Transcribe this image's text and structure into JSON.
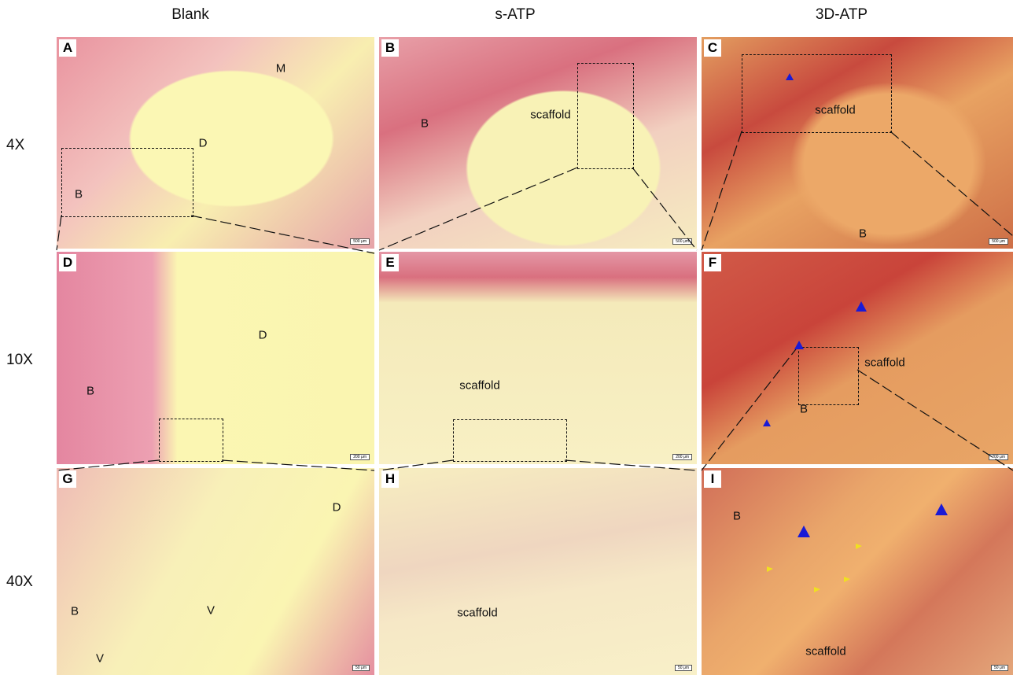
{
  "columns": [
    "Blank",
    "s-ATP",
    "3D-ATP"
  ],
  "rows": [
    "4X",
    "10X",
    "40X"
  ],
  "panels": [
    {
      "letter": "A",
      "labels": [
        "M",
        "D",
        "B"
      ],
      "scale_bar": "500 μm"
    },
    {
      "letter": "B",
      "labels": [
        "scaffold",
        "B"
      ],
      "scale_bar": "500 μm"
    },
    {
      "letter": "C",
      "labels": [
        "scaffold",
        "B"
      ],
      "scale_bar": "500 μm"
    },
    {
      "letter": "D",
      "labels": [
        "D",
        "B"
      ],
      "scale_bar": "200 μm"
    },
    {
      "letter": "E",
      "labels": [
        "scaffold"
      ],
      "scale_bar": "200 μm"
    },
    {
      "letter": "F",
      "labels": [
        "scaffold",
        "B"
      ],
      "scale_bar": "200 μm"
    },
    {
      "letter": "G",
      "labels": [
        "D",
        "B",
        "V",
        "V"
      ],
      "scale_bar": "50 μm"
    },
    {
      "letter": "H",
      "labels": [
        "scaffold"
      ],
      "scale_bar": "50 μm"
    },
    {
      "letter": "I",
      "labels": [
        "B",
        "scaffold"
      ],
      "scale_bar": "50 μm"
    }
  ]
}
